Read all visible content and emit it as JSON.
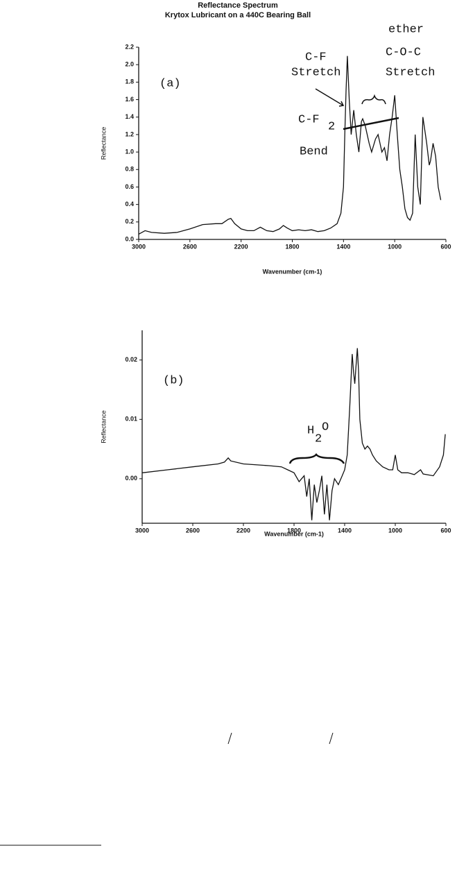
{
  "chart_data": [
    {
      "type": "line",
      "title": "Reflectance Spectrum",
      "subtitle": "Krytox Lubricant on a 440C Bearing Ball",
      "xlabel": "Wavenumber (cm-1)",
      "ylabel": "Reflectance",
      "xlim": [
        3000,
        600
      ],
      "ylim": [
        0,
        2.2
      ],
      "xticks": [
        3000,
        2600,
        2200,
        1800,
        1400,
        1000,
        600
      ],
      "yticks": [
        {
          "value": 0,
          "label": "0.0"
        },
        0.2,
        0.4,
        0.6,
        0.8,
        {
          "value": 1,
          "label": "1.0"
        },
        1.2,
        1.4,
        1.6,
        1.8,
        {
          "value": 2,
          "label": "2.0"
        },
        2.2
      ],
      "grid": false,
      "color": "#111111",
      "annotations": [
        "(a)",
        "C-F",
        "Stretch",
        "ether",
        "C-O-C",
        "Stretch",
        "C-F",
        "2",
        "Bend"
      ],
      "x": [
        3000,
        2950,
        2900,
        2800,
        2700,
        2600,
        2500,
        2400,
        2350,
        2300,
        2280,
        2250,
        2200,
        2150,
        2100,
        2050,
        2000,
        1950,
        1900,
        1870,
        1840,
        1800,
        1750,
        1700,
        1650,
        1600,
        1550,
        1500,
        1450,
        1420,
        1400,
        1390,
        1380,
        1370,
        1355,
        1340,
        1320,
        1300,
        1280,
        1260,
        1250,
        1230,
        1200,
        1180,
        1150,
        1130,
        1100,
        1080,
        1060,
        1040,
        1020,
        1000,
        980,
        960,
        940,
        920,
        900,
        880,
        860,
        840,
        820,
        800,
        780,
        760,
        750,
        730,
        720,
        700,
        680,
        660,
        640
      ],
      "values": [
        0.06,
        0.1,
        0.08,
        0.07,
        0.08,
        0.12,
        0.17,
        0.18,
        0.18,
        0.23,
        0.24,
        0.18,
        0.12,
        0.1,
        0.1,
        0.14,
        0.1,
        0.09,
        0.12,
        0.16,
        0.13,
        0.1,
        0.11,
        0.1,
        0.11,
        0.09,
        0.1,
        0.13,
        0.18,
        0.3,
        0.6,
        1.2,
        1.7,
        2.1,
        1.6,
        1.2,
        1.48,
        1.2,
        1.0,
        1.35,
        1.38,
        1.3,
        1.1,
        1.0,
        1.15,
        1.2,
        1.0,
        1.05,
        0.9,
        1.2,
        1.4,
        1.65,
        1.2,
        0.8,
        0.6,
        0.35,
        0.25,
        0.22,
        0.3,
        1.2,
        0.6,
        0.4,
        1.4,
        1.2,
        1.1,
        0.85,
        0.9,
        1.1,
        0.95,
        0.6,
        0.45
      ]
    },
    {
      "type": "line",
      "xlabel": "Wavenumber (cm-1)",
      "ylabel": "Reflectance",
      "xlim": [
        3000,
        600
      ],
      "ylim": [
        -0.0075,
        0.025
      ],
      "xticks": [
        3000,
        2600,
        2200,
        1800,
        1400,
        1000,
        600
      ],
      "yticks": [
        {
          "value": 0,
          "label": "0.00"
        },
        0.01,
        0.02
      ],
      "grid": false,
      "color": "#111111",
      "annotations": [
        "(b)",
        "H",
        "2",
        "O"
      ],
      "x": [
        3000,
        2800,
        2600,
        2400,
        2350,
        2320,
        2300,
        2200,
        2000,
        1900,
        1850,
        1800,
        1760,
        1720,
        1700,
        1680,
        1660,
        1640,
        1620,
        1600,
        1580,
        1560,
        1540,
        1520,
        1500,
        1480,
        1450,
        1420,
        1400,
        1380,
        1360,
        1340,
        1330,
        1320,
        1310,
        1300,
        1290,
        1280,
        1260,
        1240,
        1220,
        1200,
        1180,
        1150,
        1100,
        1050,
        1020,
        1000,
        980,
        950,
        900,
        850,
        800,
        780,
        700,
        650,
        620,
        605
      ],
      "values": [
        0.001,
        0.0015,
        0.002,
        0.0025,
        0.0028,
        0.0035,
        0.003,
        0.0025,
        0.0022,
        0.002,
        0.0015,
        0.001,
        -0.0005,
        0.0005,
        -0.003,
        0.0,
        -0.007,
        -0.001,
        -0.004,
        -0.002,
        0.0005,
        -0.006,
        -0.001,
        -0.007,
        -0.002,
        0.0,
        -0.001,
        0.0005,
        0.0015,
        0.004,
        0.012,
        0.021,
        0.018,
        0.016,
        0.019,
        0.022,
        0.018,
        0.01,
        0.006,
        0.005,
        0.0055,
        0.005,
        0.004,
        0.003,
        0.002,
        0.0015,
        0.0015,
        0.004,
        0.0015,
        0.001,
        0.001,
        0.0007,
        0.0015,
        0.0008,
        0.0005,
        0.002,
        0.004,
        0.0075
      ]
    }
  ]
}
